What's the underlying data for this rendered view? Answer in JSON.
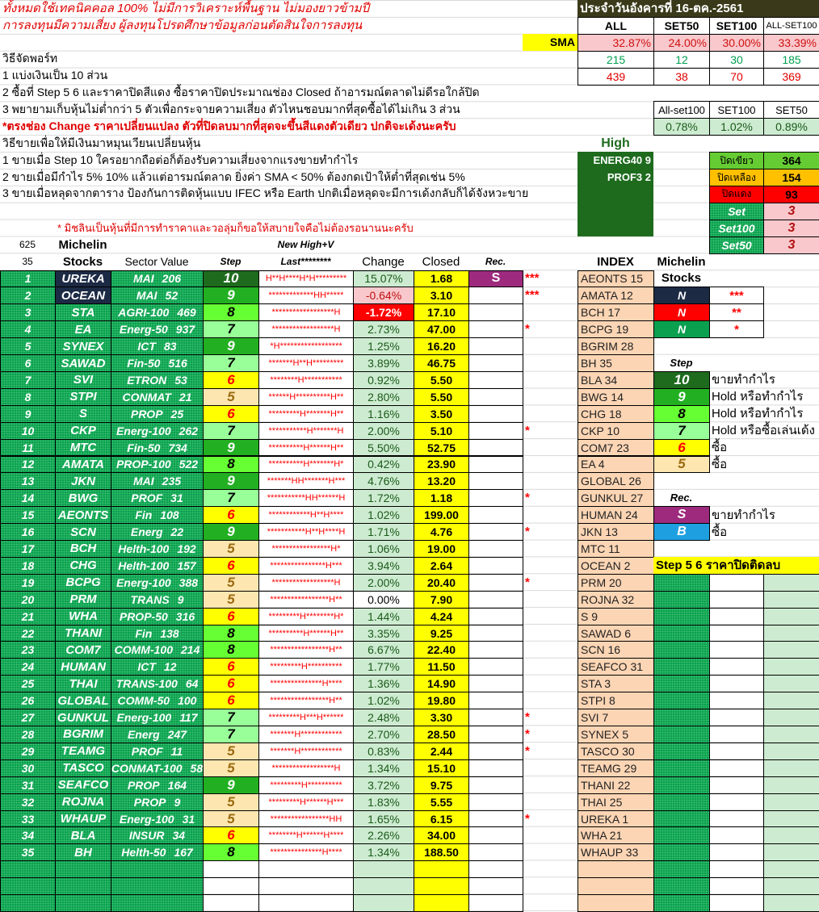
{
  "header": {
    "disclaimer_1": "ทั้งหมดใช้เทคนิคคอล 100% ไม่มีการวิเคราะห์พื้นฐาน ไม่มองยาวข้ามปี",
    "disclaimer_2": "การลงทุนมีความเสี่ยง ผู้ลงทุนโปรดศึกษาข้อมูลก่อนตัดสินใจการลงทุน",
    "date_title": "ประจำวันอังคารที่ 16-ตค.-2561",
    "columns": [
      "ALL",
      "SET50",
      "SET100",
      "ALL-SET100"
    ],
    "sma_label": "SMA",
    "sma": [
      "32.87%",
      "24.00%",
      "30.00%",
      "33.39%"
    ],
    "green_counts": [
      "215",
      "12",
      "30",
      "185"
    ],
    "red_counts": [
      "439",
      "38",
      "70",
      "369"
    ]
  },
  "notes": {
    "portfolio_title": "วิธีจัดพอร์ท",
    "p1": "1 แบ่งเงินเป็น 10 ส่วน",
    "p2": "2 ซื้อที่ Step 5 6  และราคาปิดสีแดง ซื้อราคาปิดประมาณช่อง Closed ถ้าอารมณ์ตลาดไม่ดีรอใกล้ปิด",
    "p3": "3 พยายามเก็บหุ้นไม่ต่ำกว่า 5 ตัวเพื่อกระจายความเสี่ยง ตัวไหนชอบมากที่สุดซื้อได้ไม่เกิน 3 ส่วน",
    "warning": "*ตรงช่อง Change ราคาเปลี่ยนแปลง ตัวที่ปิดลบมากที่สุดจะขึ้นสีแดงตัวเดียว ปกติจะเด้งนะครับ",
    "sell_title": "วิธีขายเพื่อให้มีเงินมาหมุนเวียนเปลี่ยนหุ้น",
    "s1": "1 ขายเมื่อ Step 10 ใครอยากถือต่อก็ต้องรับความเสี่ยงจากแรงขายทำกำไร",
    "s2": "2 ขายเมื่อมีกำไร 5% 10% แล้วแต่อารมณ์ตลาด ยิ่งค่า SMA < 50% ต้องกดเป้าให้ต่ำที่สุดเช่น 5%",
    "s3": "3 ขายเมื่อหลุดจากตาราง ป้องกันการติดหุ้นแบบ IFEC หรือ Earth ปกติเมื่อหลุดจะมีการเด้งกลับก็ได้จังหวะขาย",
    "michelin_note": "* มิชลินเป็นหุ้นที่มีการทำราคาและวอลุ่มก็ขอให้สบายใจคือไม่ต้องรอนานนะครับ"
  },
  "index_change": {
    "labels": [
      "All-set100",
      "SET100",
      "SET50"
    ],
    "values": [
      "0.78%",
      "1.02%",
      "0.89%"
    ]
  },
  "high": {
    "label": "High",
    "items": [
      "ENERG40  9",
      "PROF3  2"
    ]
  },
  "close_summary": {
    "green_label": "ปิดเขียว",
    "green": "364",
    "yellow_label": "ปิดเหลือง",
    "yellow": "154",
    "red_label": "ปิดแดง",
    "red": "93",
    "set_label": "Set",
    "set": "3",
    "set100_label": "Set100",
    "set100": "3",
    "set50_label": "Set50",
    "set50": "3"
  },
  "table": {
    "count_all": "625",
    "count": "35",
    "michelin_label": "Michelin",
    "new_high_label": "New High+V",
    "headers": {
      "stocks": "Stocks",
      "sector_value": "Sector  Value",
      "step": "Step",
      "last": "Last********",
      "change": "Change",
      "closed": "Closed",
      "rec": "Rec."
    },
    "rows": [
      {
        "no": "1",
        "stock": "UREKA",
        "sector": "MAI",
        "value": "206",
        "step": "10",
        "last": "H**H****H*H*********",
        "change": "15.07%",
        "closed": "1.68",
        "rec": "S",
        "stars": "***",
        "michelin": true
      },
      {
        "no": "2",
        "stock": "OCEAN",
        "sector": "MAI",
        "value": "52",
        "step": "9",
        "last": "*************HH*****",
        "change": "-0.64%",
        "closed": "3.10",
        "rec": "",
        "stars": "***",
        "michelin": true
      },
      {
        "no": "3",
        "stock": "STA",
        "sector": "AGRI-100",
        "value": "469",
        "step": "8",
        "last": "******************H",
        "change": "-1.72%",
        "closed": "17.10",
        "rec": "",
        "stars": "",
        "worst": true
      },
      {
        "no": "4",
        "stock": "EA",
        "sector": "Energ-50",
        "value": "937",
        "step": "7",
        "last": "******************H",
        "change": "2.73%",
        "closed": "47.00",
        "rec": "",
        "stars": "*"
      },
      {
        "no": "5",
        "stock": "SYNEX",
        "sector": "ICT",
        "value": "83",
        "step": "9",
        "last": "*H******************",
        "change": "1.25%",
        "closed": "16.20",
        "rec": "",
        "stars": ""
      },
      {
        "no": "6",
        "stock": "SAWAD",
        "sector": "Fin-50",
        "value": "516",
        "step": "7",
        "last": "*******H**H*********",
        "change": "3.89%",
        "closed": "46.75",
        "rec": "",
        "stars": ""
      },
      {
        "no": "7",
        "stock": "SVI",
        "sector": "ETRON",
        "value": "53",
        "step": "6",
        "last": "********H***********",
        "change": "0.92%",
        "closed": "5.50",
        "rec": "",
        "stars": ""
      },
      {
        "no": "8",
        "stock": "STPI",
        "sector": "CONMAT",
        "value": "21",
        "step": "5",
        "last": "******H**********H**",
        "change": "2.80%",
        "closed": "5.50",
        "rec": "",
        "stars": ""
      },
      {
        "no": "9",
        "stock": "S",
        "sector": "PROP",
        "value": "25",
        "step": "6",
        "last": "*********H*******H**",
        "change": "1.16%",
        "closed": "3.50",
        "rec": "",
        "stars": ""
      },
      {
        "no": "10",
        "stock": "CKP",
        "sector": "Energ-100",
        "value": "262",
        "step": "7",
        "last": "***********H*******H",
        "change": "2.00%",
        "closed": "5.10",
        "rec": "",
        "stars": "*"
      },
      {
        "no": "11",
        "stock": "MTC",
        "sector": "Fin-50",
        "value": "734",
        "step": "9",
        "last": "**********H******H**",
        "change": "5.50%",
        "closed": "52.75",
        "rec": "",
        "stars": ""
      },
      {
        "no": "12",
        "stock": "AMATA",
        "sector": "PROP-100",
        "value": "522",
        "step": "8",
        "last": "**********H*******H*",
        "change": "0.42%",
        "closed": "23.90",
        "rec": "",
        "stars": ""
      },
      {
        "no": "13",
        "stock": "JKN",
        "sector": "MAI",
        "value": "235",
        "step": "9",
        "last": "*******HH*******H***",
        "change": "4.76%",
        "closed": "13.20",
        "rec": "",
        "stars": ""
      },
      {
        "no": "14",
        "stock": "BWG",
        "sector": "PROF",
        "value": "31",
        "step": "7",
        "last": "***********HH******H",
        "change": "1.72%",
        "closed": "1.18",
        "rec": "",
        "stars": "*"
      },
      {
        "no": "15",
        "stock": "AEONTS",
        "sector": "Fin",
        "value": "108",
        "step": "6",
        "last": "************H**H****",
        "change": "1.02%",
        "closed": "199.00",
        "rec": "",
        "stars": ""
      },
      {
        "no": "16",
        "stock": "SCN",
        "sector": "Energ",
        "value": "22",
        "step": "9",
        "last": "***********H**H****H",
        "change": "1.71%",
        "closed": "4.76",
        "rec": "",
        "stars": "*"
      },
      {
        "no": "17",
        "stock": "BCH",
        "sector": "Helth-100",
        "value": "192",
        "step": "5",
        "last": "*****************H*",
        "change": "1.06%",
        "closed": "19.00",
        "rec": "",
        "stars": ""
      },
      {
        "no": "18",
        "stock": "CHG",
        "sector": "Helth-100",
        "value": "157",
        "step": "6",
        "last": "****************H***",
        "change": "3.94%",
        "closed": "2.64",
        "rec": "",
        "stars": ""
      },
      {
        "no": "19",
        "stock": "BCPG",
        "sector": "Energ-100",
        "value": "388",
        "step": "5",
        "last": "******************H",
        "change": "2.00%",
        "closed": "20.40",
        "rec": "",
        "stars": "*"
      },
      {
        "no": "20",
        "stock": "PRM",
        "sector": "TRANS",
        "value": "9",
        "step": "5",
        "last": "*****************H**",
        "change": "0.00%",
        "closed": "7.90",
        "rec": "",
        "stars": ""
      },
      {
        "no": "21",
        "stock": "WHA",
        "sector": "PROP-50",
        "value": "316",
        "step": "6",
        "last": "*********H********H*",
        "change": "1.44%",
        "closed": "4.24",
        "rec": "",
        "stars": ""
      },
      {
        "no": "22",
        "stock": "THANI",
        "sector": "Fin",
        "value": "138",
        "step": "8",
        "last": "**********H******H**",
        "change": "3.35%",
        "closed": "9.25",
        "rec": "",
        "stars": ""
      },
      {
        "no": "23",
        "stock": "COM7",
        "sector": "COMM-100",
        "value": "214",
        "step": "8",
        "last": "*****************H**",
        "change": "6.67%",
        "closed": "22.40",
        "rec": "",
        "stars": ""
      },
      {
        "no": "24",
        "stock": "HUMAN",
        "sector": "ICT",
        "value": "12",
        "step": "6",
        "last": "*********H**********",
        "change": "1.77%",
        "closed": "11.50",
        "rec": "",
        "stars": ""
      },
      {
        "no": "25",
        "stock": "THAI",
        "sector": "TRANS-100",
        "value": "64",
        "step": "6",
        "last": "***************H****",
        "change": "1.36%",
        "closed": "14.90",
        "rec": "",
        "stars": ""
      },
      {
        "no": "26",
        "stock": "GLOBAL",
        "sector": "COMM-50",
        "value": "100",
        "step": "6",
        "last": "*****************H**",
        "change": "1.02%",
        "closed": "19.80",
        "rec": "",
        "stars": ""
      },
      {
        "no": "27",
        "stock": "GUNKUL",
        "sector": "Energ-100",
        "value": "117",
        "step": "7",
        "last": "*********H***H******",
        "change": "2.48%",
        "closed": "3.30",
        "rec": "",
        "stars": "*"
      },
      {
        "no": "28",
        "stock": "BGRIM",
        "sector": "Energ",
        "value": "247",
        "step": "7",
        "last": "*******H************",
        "change": "2.70%",
        "closed": "28.50",
        "rec": "",
        "stars": "*"
      },
      {
        "no": "29",
        "stock": "TEAMG",
        "sector": "PROF",
        "value": "11",
        "step": "5",
        "last": "*******H************",
        "change": "0.83%",
        "closed": "2.44",
        "rec": "",
        "stars": "*"
      },
      {
        "no": "30",
        "stock": "TASCO",
        "sector": "CONMAT-100",
        "value": "58",
        "step": "5",
        "last": "******************H",
        "change": "1.34%",
        "closed": "15.10",
        "rec": "",
        "stars": ""
      },
      {
        "no": "31",
        "stock": "SEAFCO",
        "sector": "PROP",
        "value": "164",
        "step": "9",
        "last": "*********H**********",
        "change": "3.72%",
        "closed": "9.75",
        "rec": "",
        "stars": ""
      },
      {
        "no": "32",
        "stock": "ROJNA",
        "sector": "PROP",
        "value": "9",
        "step": "5",
        "last": "*********H******H***",
        "change": "1.83%",
        "closed": "5.55",
        "rec": "",
        "stars": ""
      },
      {
        "no": "33",
        "stock": "WHAUP",
        "sector": "Energ-100",
        "value": "31",
        "step": "5",
        "last": "*****************HH",
        "change": "1.65%",
        "closed": "6.15",
        "rec": "",
        "stars": "*"
      },
      {
        "no": "34",
        "stock": "BLA",
        "sector": "INSUR",
        "value": "34",
        "step": "6",
        "last": "********H******H****",
        "change": "2.26%",
        "closed": "34.00",
        "rec": "",
        "stars": ""
      },
      {
        "no": "35",
        "stock": "BH",
        "sector": "Helth-50",
        "value": "167",
        "step": "8",
        "last": "***************H****",
        "change": "1.34%",
        "closed": "188.50",
        "rec": "",
        "stars": ""
      }
    ]
  },
  "index_list": {
    "header": "INDEX",
    "items": [
      "AEONTS 15",
      "AMATA 12",
      "BCH 17",
      "BCPG 19",
      "BGRIM 28",
      "BH 35",
      "BLA 34",
      "BWG 14",
      "CHG 18",
      "CKP 10",
      "COM7 23",
      "EA 4",
      "GLOBAL 26",
      "GUNKUL 27",
      "HUMAN 24",
      "JKN 13",
      "MTC 11",
      "OCEAN 2",
      "PRM 20",
      "ROJNA 32",
      "S 9",
      "SAWAD 6",
      "SCN 16",
      "SEAFCO 31",
      "STA 3",
      "STPI 8",
      "SVI 7",
      "SYNEX 5",
      "TASCO 30",
      "TEAMG 29",
      "THANI 22",
      "THAI 25",
      "UREKA 1",
      "WHA 21",
      "WHAUP 33"
    ]
  },
  "legend": {
    "michelin_label": "Michelin",
    "stocks_label": "Stocks",
    "michelin_levels": [
      {
        "mark": "N",
        "stars": "***",
        "color": "#1c2a44"
      },
      {
        "mark": "N",
        "stars": "**",
        "color": "#ff0000"
      },
      {
        "mark": "N",
        "stars": "*",
        "color": "#0aa050"
      }
    ],
    "step_label": "Step",
    "steps": [
      {
        "step": "10",
        "desc": "ขายทำกำไร"
      },
      {
        "step": "9",
        "desc": "Hold หรือทำกำไร"
      },
      {
        "step": "8",
        "desc": "Hold หรือทำกำไร"
      },
      {
        "step": "7",
        "desc": "Hold หรือซื้อเล่นเด้ง"
      },
      {
        "step": "6",
        "desc": "ซื้อ"
      },
      {
        "step": "5",
        "desc": "ซื้อ"
      }
    ],
    "rec_label": "Rec.",
    "recs": [
      {
        "mark": "S",
        "desc": "ขายทำกำไร",
        "color": "#9e2a7e"
      },
      {
        "mark": "B",
        "desc": "ซื้อ",
        "color": "#1ea0e0"
      }
    ],
    "negative_close_note": "Step 5 6 ราคาปิดติดลบ"
  },
  "step_colors": {
    "10": {
      "bg": "#1e6b1e",
      "fg": "#ffffff"
    },
    "9": {
      "bg": "#22b022",
      "fg": "#ffffff"
    },
    "8": {
      "bg": "#66ff33",
      "fg": "#000000"
    },
    "7": {
      "bg": "#99ff99",
      "fg": "#000000"
    },
    "6": {
      "bg": "#ffff00",
      "fg": "#ff0000"
    },
    "5": {
      "bg": "#fde6b0",
      "fg": "#9a6a10"
    }
  }
}
